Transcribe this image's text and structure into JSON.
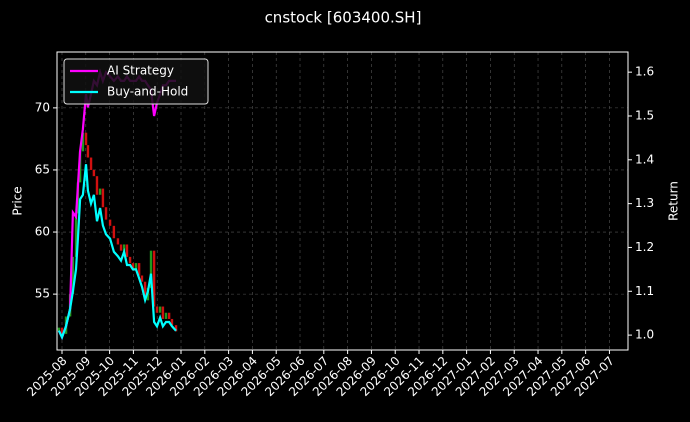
{
  "chart_data": {
    "type": "candlestick",
    "title": "cnstock [603400.SH]",
    "ylabel": "Price",
    "y2label": "Return",
    "x": [
      -0.13,
      0,
      0.17,
      0.34,
      0.46,
      0.59,
      0.67,
      0.76,
      0.88,
      1.01,
      1.09,
      1.22,
      1.34,
      1.47,
      1.6,
      1.72,
      1.85,
      2.02,
      2.18,
      2.35,
      2.48,
      2.61,
      2.73,
      2.86,
      2.98,
      3.11,
      3.24,
      3.36,
      3.49,
      3.61,
      3.74,
      3.87,
      3.99,
      4.12,
      4.24,
      4.37,
      4.5,
      4.62,
      4.79
    ],
    "price": {
      "up_color": "#1f9a1f",
      "down_color": "#d01010",
      "open": [
        52.0,
        52.3,
        51.8,
        53.2,
        55.0,
        58.0,
        61.5,
        64.0,
        66.5,
        68.0,
        67.0,
        66.0,
        65.0,
        64.5,
        63.0,
        63.5,
        62.0,
        61.0,
        60.5,
        59.5,
        59.0,
        58.5,
        59.0,
        58.0,
        57.5,
        57.0,
        57.5,
        56.5,
        56.0,
        54.5,
        55.5,
        58.5,
        54.0,
        53.5,
        54.0,
        53.0,
        53.5,
        53.0,
        52.5
      ],
      "close": [
        52.3,
        51.8,
        53.2,
        55.0,
        58.0,
        61.5,
        64.0,
        66.5,
        68.0,
        67.0,
        66.0,
        65.0,
        64.5,
        63.0,
        63.5,
        62.0,
        61.0,
        60.5,
        59.5,
        59.0,
        58.5,
        59.0,
        58.0,
        57.5,
        57.0,
        57.5,
        56.5,
        56.0,
        54.5,
        55.5,
        58.5,
        54.0,
        53.5,
        54.0,
        53.0,
        53.5,
        53.0,
        52.5,
        52.0
      ]
    },
    "series": [
      {
        "name": "AI Strategy",
        "color": "#ff00ff",
        "axis": "y2",
        "values": [
          1.01,
          0.995,
          1.02,
          1.06,
          1.28,
          1.27,
          1.34,
          1.42,
          1.47,
          1.55,
          1.52,
          1.55,
          1.58,
          1.57,
          1.6,
          1.58,
          1.6,
          1.59,
          1.58,
          1.59,
          1.58,
          1.58,
          1.59,
          1.58,
          1.58,
          1.58,
          1.59,
          1.58,
          1.58,
          1.57,
          1.56,
          1.5,
          1.53,
          1.55,
          1.57,
          1.57,
          1.58,
          1.58,
          1.58
        ]
      },
      {
        "name": "Buy-and-Hold",
        "color": "#00ffff",
        "axis": "y2",
        "values": [
          1.01,
          0.995,
          1.02,
          1.06,
          1.1,
          1.15,
          1.22,
          1.31,
          1.32,
          1.39,
          1.33,
          1.3,
          1.32,
          1.26,
          1.29,
          1.25,
          1.23,
          1.22,
          1.19,
          1.18,
          1.17,
          1.19,
          1.16,
          1.16,
          1.15,
          1.15,
          1.13,
          1.11,
          1.08,
          1.1,
          1.14,
          1.03,
          1.02,
          1.04,
          1.02,
          1.03,
          1.03,
          1.02,
          1.01
        ]
      }
    ],
    "xlim": [
      -0.21,
      23.78
    ],
    "xticks": [
      {
        "value": 0,
        "label": "2025-08"
      },
      {
        "value": 1,
        "label": "2025-09"
      },
      {
        "value": 2,
        "label": "2025-10"
      },
      {
        "value": 3,
        "label": "2025-11"
      },
      {
        "value": 4,
        "label": "2025-12"
      },
      {
        "value": 5,
        "label": "2026-01"
      },
      {
        "value": 6,
        "label": "2026-02"
      },
      {
        "value": 7,
        "label": "2026-03"
      },
      {
        "value": 8,
        "label": "2026-04"
      },
      {
        "value": 9,
        "label": "2026-05"
      },
      {
        "value": 10,
        "label": "2026-06"
      },
      {
        "value": 11,
        "label": "2026-07"
      },
      {
        "value": 12,
        "label": "2026-08"
      },
      {
        "value": 13,
        "label": "2026-09"
      },
      {
        "value": 14,
        "label": "2026-10"
      },
      {
        "value": 15,
        "label": "2026-11"
      },
      {
        "value": 16,
        "label": "2026-12"
      },
      {
        "value": 17,
        "label": "2027-01"
      },
      {
        "value": 18,
        "label": "2027-02"
      },
      {
        "value": 19,
        "label": "2027-03"
      },
      {
        "value": 20,
        "label": "2027-04"
      },
      {
        "value": 21,
        "label": "2027-05"
      },
      {
        "value": 22,
        "label": "2027-06"
      },
      {
        "value": 23,
        "label": "2027-07"
      }
    ],
    "ylim": [
      50.5,
      74.5
    ],
    "yticks": [
      55,
      60,
      65,
      70
    ],
    "y2lim": [
      0.966,
      1.646
    ],
    "y2ticks": [
      {
        "value": 1,
        "label": "1.0"
      },
      1.1,
      1.2,
      1.3,
      1.4,
      1.5,
      1.6
    ],
    "grid": true,
    "legend": "upper left"
  }
}
